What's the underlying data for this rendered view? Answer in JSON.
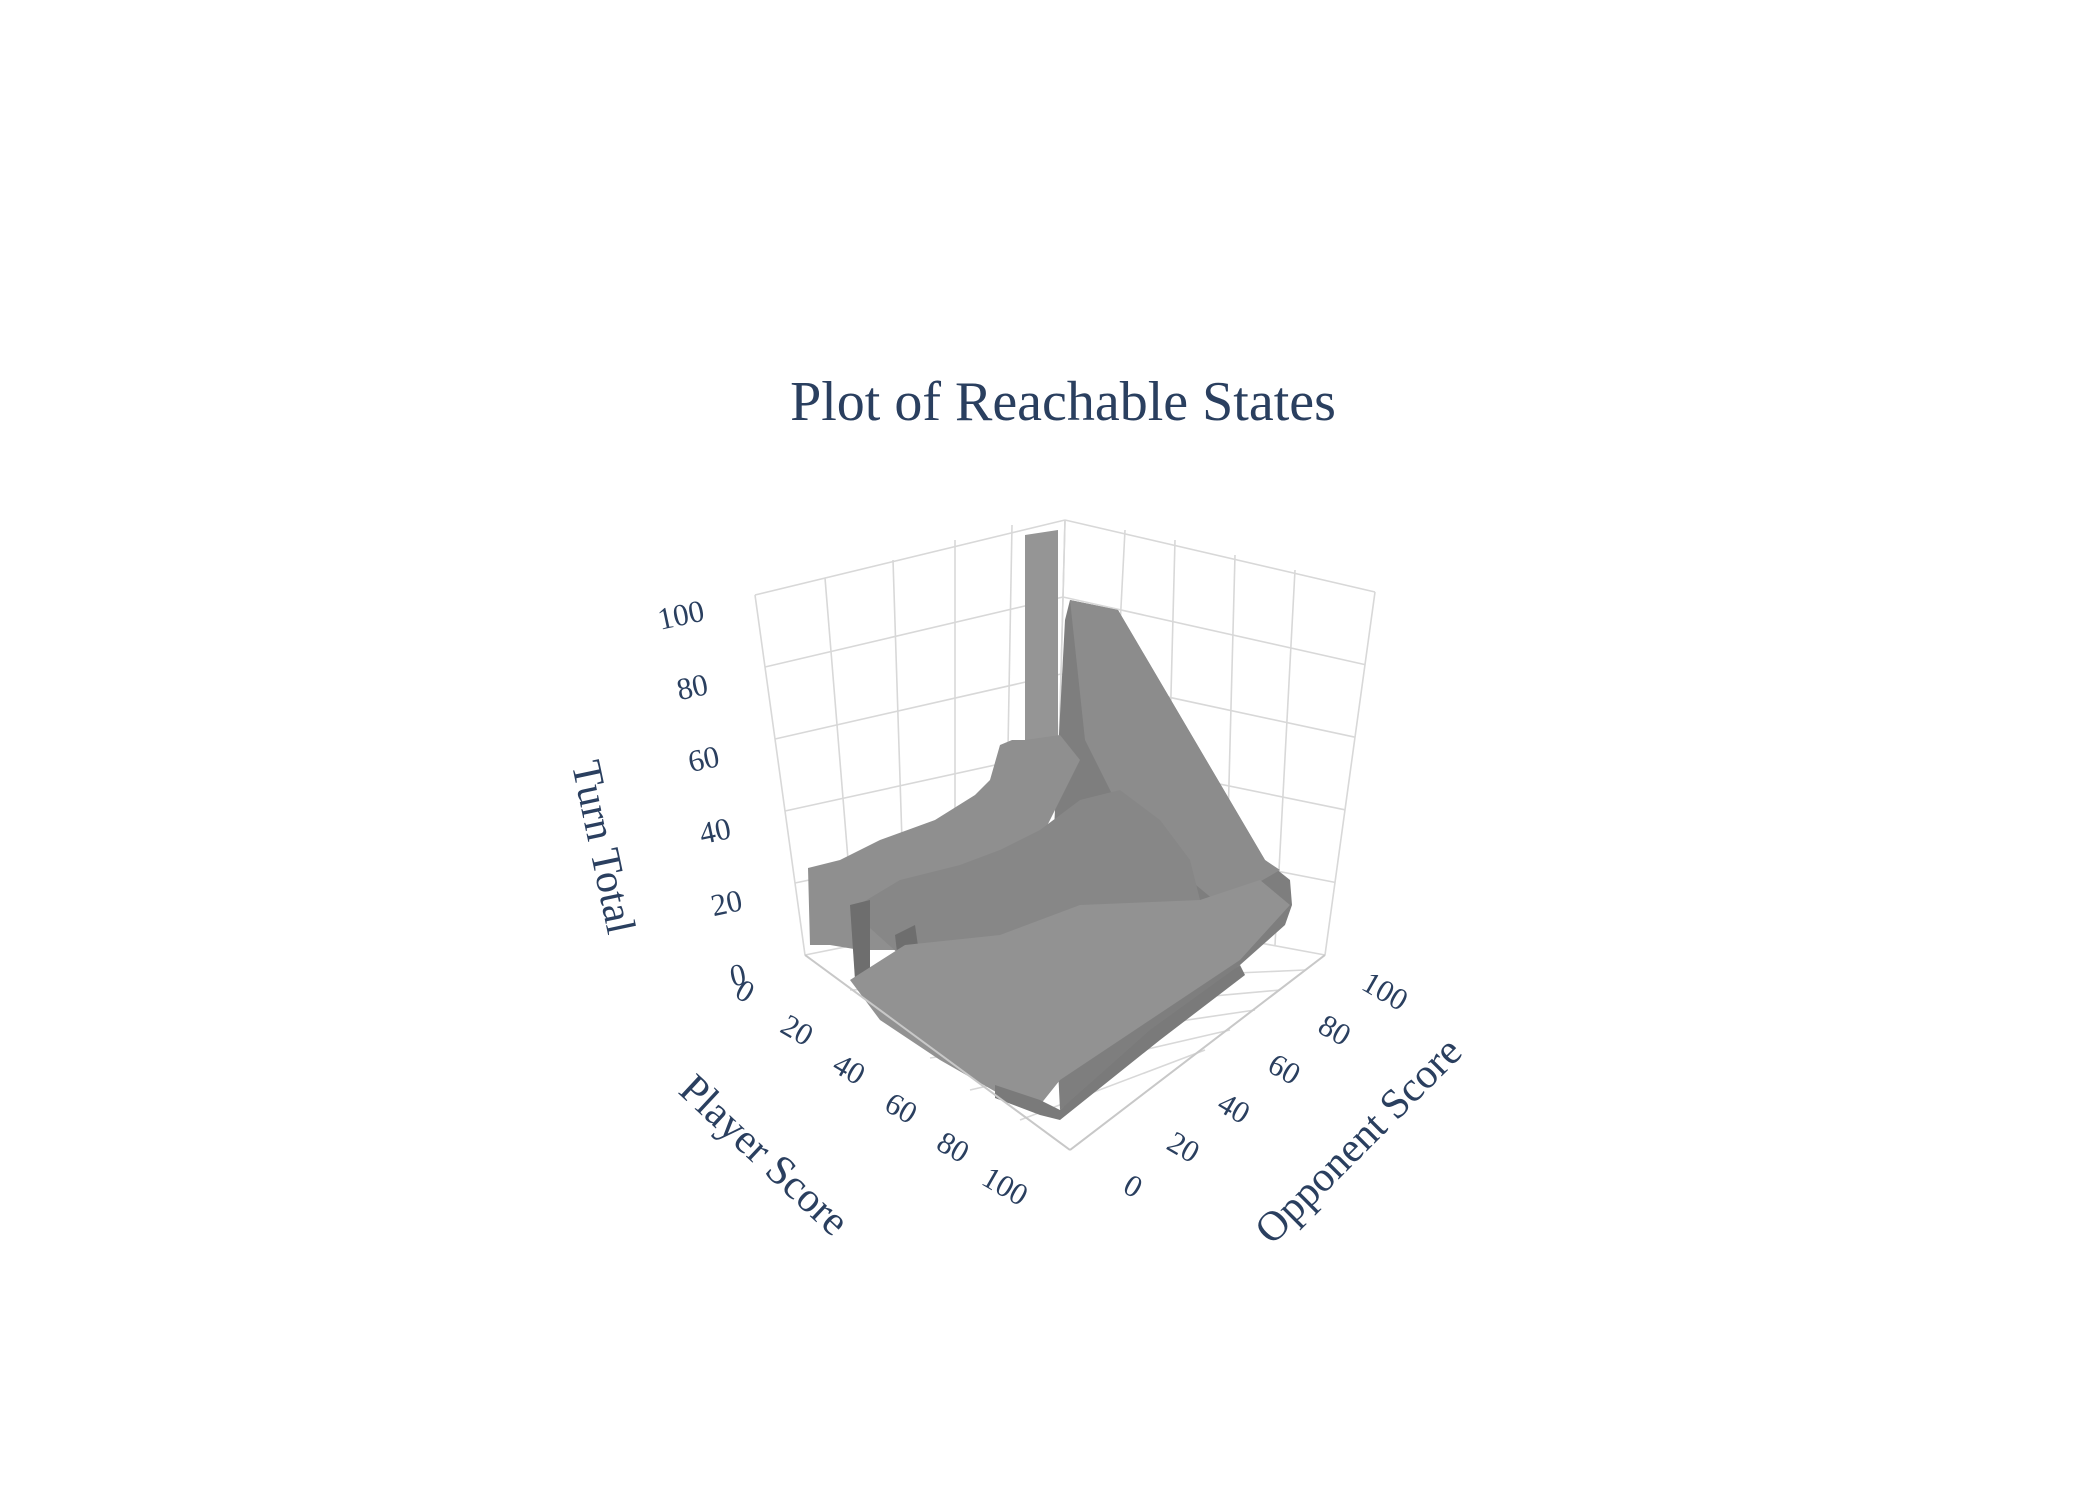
{
  "chart_data": {
    "type": "voxel",
    "title": "Plot of Reachable States",
    "axes": {
      "player": {
        "label": "Player Score",
        "range": [
          0,
          100
        ],
        "ticks": [
          "0",
          "20",
          "40",
          "60",
          "80",
          "100"
        ]
      },
      "opponent": {
        "label": "Opponent Score",
        "range": [
          0,
          100
        ],
        "ticks": [
          "0",
          "20",
          "40",
          "60",
          "80",
          "100"
        ]
      },
      "turn": {
        "label": "Turn Total",
        "range": [
          0,
          100
        ],
        "ticks": [
          "0",
          "20",
          "40",
          "60",
          "80",
          "100"
        ]
      }
    },
    "voxel_color": "#8f8f8f",
    "grid_color": "#d8d8d8",
    "text_color": "#2a3f5f",
    "regions": [
      {
        "name": "reachable-slab-opponent-0",
        "player": [
          0,
          100
        ],
        "opponent": [
          0,
          2
        ],
        "turn_max": 20
      },
      {
        "name": "reachable-slab-opponent-2",
        "player": [
          0,
          72
        ],
        "opponent": [
          2,
          4
        ],
        "turn_max": 34
      },
      {
        "name": "reachable-spike",
        "player": [
          52,
          60
        ],
        "opponent": [
          0,
          2
        ],
        "turn_max": 100
      },
      {
        "name": "reachable-wedge-player-0",
        "player": [
          0,
          2
        ],
        "opponent": [
          0,
          100
        ],
        "turn_max": 99
      },
      {
        "name": "reachable-band-player-20",
        "player": [
          18,
          24
        ],
        "opponent": [
          0,
          100
        ],
        "turn_max": 40
      },
      {
        "name": "reachable-band-player-40",
        "player": [
          38,
          44
        ],
        "opponent": [
          0,
          100
        ],
        "turn_max": 28
      },
      {
        "name": "reachable-band-player-60",
        "player": [
          58,
          64
        ],
        "opponent": [
          0,
          100
        ],
        "turn_max": 22
      },
      {
        "name": "reachable-band-player-80",
        "player": [
          78,
          84
        ],
        "opponent": [
          0,
          100
        ],
        "turn_max": 16
      },
      {
        "name": "reachable-floor",
        "player": [
          0,
          100
        ],
        "opponent": [
          0,
          100
        ],
        "turn_max": 6
      }
    ]
  }
}
